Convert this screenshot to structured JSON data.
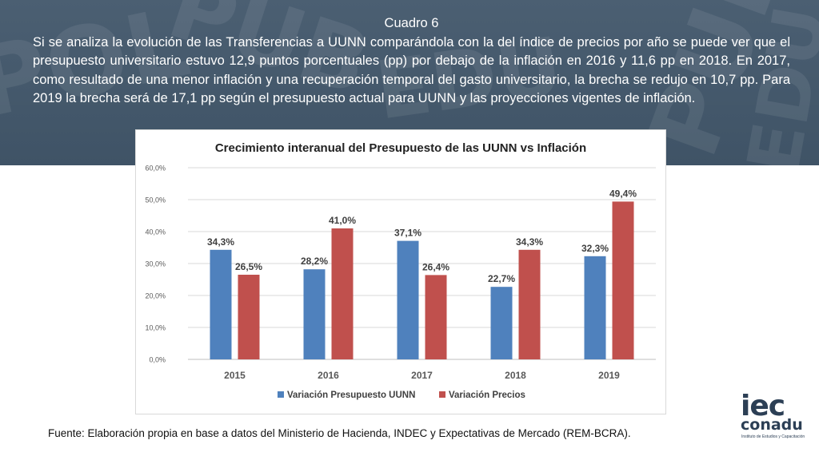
{
  "header": {
    "title": "Cuadro 6",
    "body": "Si se analiza la evolución de las Transferencias a UUNN comparándola con la del índice de precios por año se puede ver que el presupuesto universitario estuvo 12,9 puntos porcentuales (pp) por debajo de la inflación en 2016 y 11,6 pp en 2018. En 2017, como resultado de una menor inflación y una recuperación temporal del gasto universitario, la brecha se redujo en 10,7 pp. Para 2019 la brecha será de 17,1 pp según el presupuesto actual para UUNN y las proyecciones vigentes de inflación."
  },
  "colors": {
    "banner": "#45596c",
    "series_1": "#4f81bd",
    "series_2": "#c0504d"
  },
  "chart_data": {
    "type": "bar",
    "title": "Crecimiento interanual del Presupuesto de las UUNN vs Inflación",
    "categories": [
      "2015",
      "2016",
      "2017",
      "2018",
      "2019"
    ],
    "series": [
      {
        "name": "Variación Presupuesto UUNN",
        "values": [
          34.3,
          28.2,
          37.1,
          22.7,
          32.3
        ],
        "labels": [
          "34,3%",
          "28,2%",
          "37,1%",
          "22,7%",
          "32,3%"
        ],
        "color": "#4f81bd"
      },
      {
        "name": "Variación Precios",
        "values": [
          26.5,
          41.0,
          26.4,
          34.3,
          49.4
        ],
        "labels": [
          "26,5%",
          "41,0%",
          "26,4%",
          "34,3%",
          "49,4%"
        ],
        "color": "#c0504d"
      }
    ],
    "ylim": [
      0,
      60
    ],
    "yticks": [
      0,
      10,
      20,
      30,
      40,
      50,
      60
    ],
    "ytick_labels": [
      "0,0%",
      "10,0%",
      "20,0%",
      "30,0%",
      "40,0%",
      "50,0%",
      "60,0%"
    ],
    "grid": true,
    "legend": "bottom"
  },
  "footer": {
    "source": "Fuente: Elaboración propia en base a datos del Ministerio de Hacienda, INDEC y Expectativas de Mercado (REM-BCRA)."
  },
  "logo": {
    "name": "iec conadu",
    "subtitle": "Instituto de Estudios y Capacitación"
  }
}
